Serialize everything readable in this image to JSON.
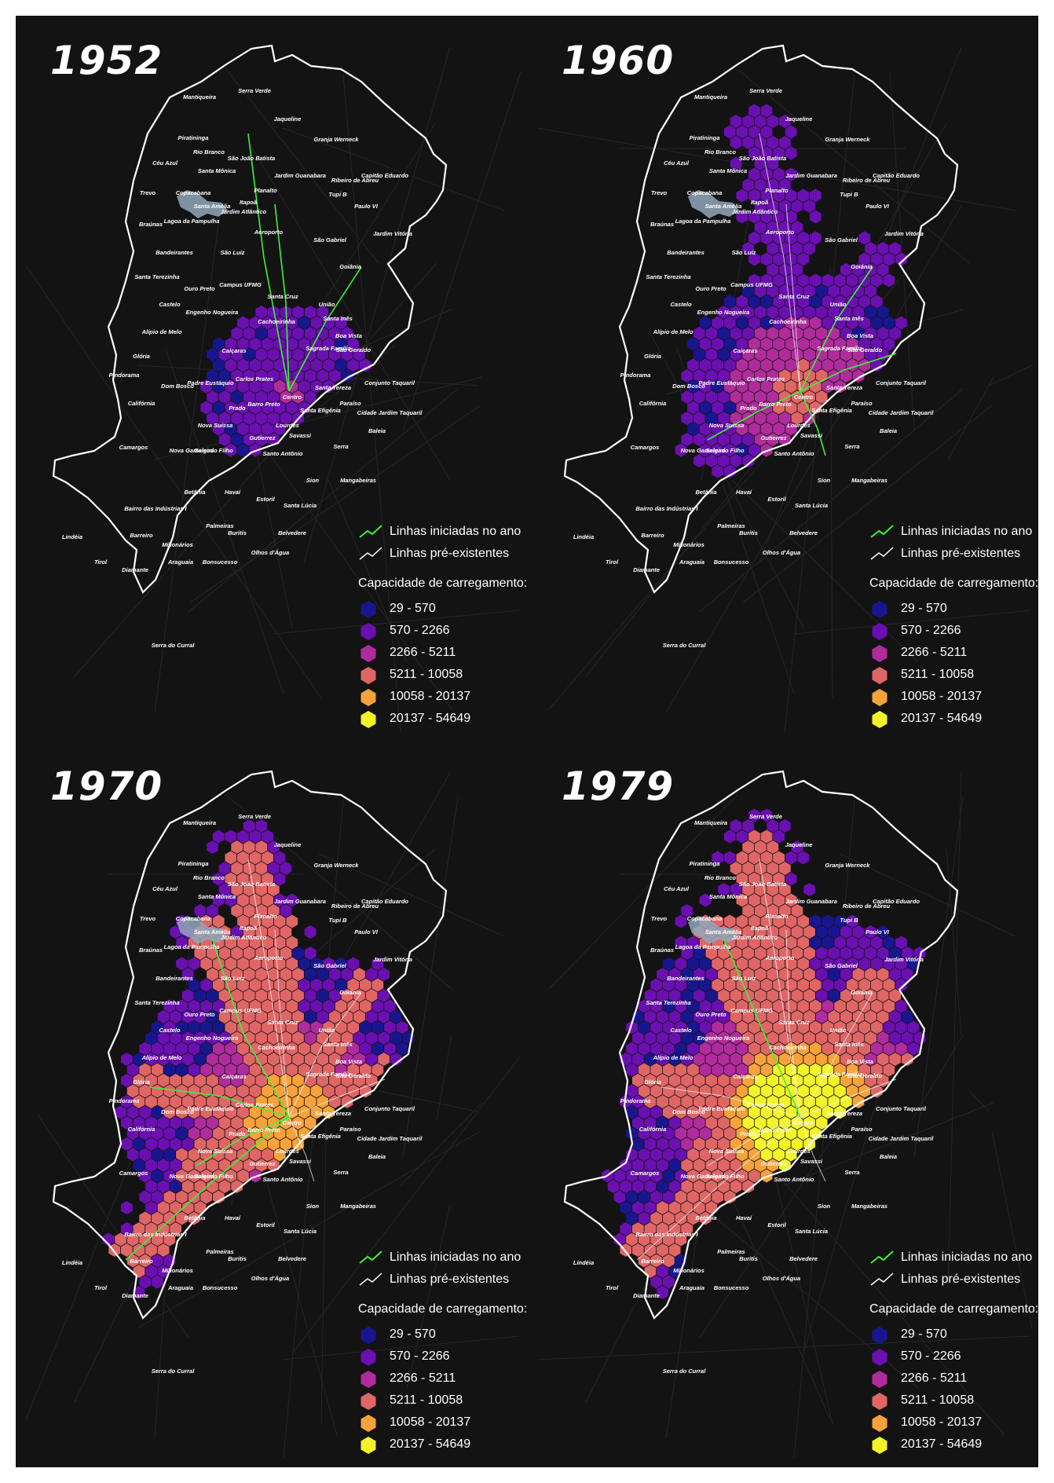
{
  "panels": [
    {
      "year": "1952",
      "intensity": 0
    },
    {
      "year": "1960",
      "intensity": 1
    },
    {
      "year": "1970",
      "intensity": 2
    },
    {
      "year": "1979",
      "intensity": 3
    }
  ],
  "legend": {
    "new_lines": "Linhas iniciadas no ano",
    "existing_lines": "Linhas pré-existentes",
    "capacity_title": "Capacidade de carregamento:",
    "classes": [
      {
        "label": "29 - 570",
        "color": "#18168f"
      },
      {
        "label": "570 - 2266",
        "color": "#6a0fb0"
      },
      {
        "label": "2266 - 5211",
        "color": "#b02c9c"
      },
      {
        "label": "5211 - 10058",
        "color": "#e06666"
      },
      {
        "label": "10058 - 20137",
        "color": "#f7a23a"
      },
      {
        "label": "20137 - 54649",
        "color": "#f3f32a"
      }
    ]
  },
  "colors": {
    "new_line": "#3df23d",
    "existing_line": "#ffffff",
    "background": "#131313"
  },
  "neighborhoods": [
    "Serra Verde",
    "Mantiqueira",
    "Jaqueline",
    "Piratininga",
    "Granja Werneck",
    "Rio Branco",
    "Céu Azul",
    "São João Batista",
    "Santa Mônica",
    "Jardim Guanabara",
    "Capitão Eduardo",
    "Ribeiro de Abreu",
    "Trevo",
    "Copacabana",
    "Planalto",
    "Tupi B",
    "Santa Amélia",
    "Itapoã",
    "Paulo VI",
    "Braúnas",
    "Lagoa da Pampulha",
    "Jardim Atlântico",
    "Aeroporto",
    "Jardim Vitória",
    "São Gabriel",
    "Bandeirantes",
    "São Luiz",
    "Goiânia",
    "Santa Terezinha",
    "Ouro Preto",
    "Campus UFMG",
    "Castelo",
    "Santa Cruz",
    "União",
    "Engenho Nogueira",
    "Santa Inês",
    "Cachoeirinha",
    "Alípio de Melo",
    "Boa Vista",
    "São Geraldo",
    "Glória",
    "Caiçaras",
    "Sagrada Família",
    "Pindorama",
    "Padre Eustáquio",
    "Carlos Prates",
    "Dom Bosco",
    "Centro",
    "Santa Tereza",
    "Conjunto Taquaril",
    "Califórnia",
    "Prado",
    "Barro Preto",
    "Paraíso",
    "Santa Efigênia",
    "Lourdes",
    "Cidade Jardim Taquaril",
    "Nova Suíssa",
    "Savassi",
    "Baleia",
    "Camargos",
    "Nova Gameleira",
    "Salgado Filho",
    "Gutierrez",
    "Serra",
    "Santo Antônio",
    "Sion",
    "Betânia",
    "Havaí",
    "Mangabeiras",
    "Estoril",
    "Santa Lúcia",
    "Bairro das Indústrias I",
    "Palmeiras",
    "Lindéia",
    "Barreiro",
    "Buritis",
    "Belvedere",
    "Milionários",
    "Olhos d'Água",
    "Tirol",
    "Diamante",
    "Araguaia",
    "Bonsucesso",
    "Serra do Curral"
  ]
}
